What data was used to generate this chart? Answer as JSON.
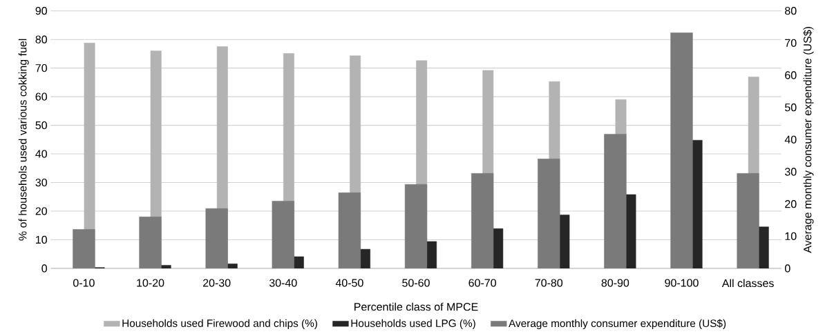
{
  "chart_data": {
    "type": "bar",
    "xlabel": "Percentile class of MPCE",
    "ylabel": "% of househols used various cokking fuel",
    "y2label": "Average monthly consumer expenditure (US$)",
    "categories": [
      "0-10",
      "10-20",
      "20-30",
      "30-40",
      "40-50",
      "50-60",
      "60-70",
      "70-80",
      "80-90",
      "90-100",
      "All classes"
    ],
    "series": [
      {
        "name": "Households used Firewood and chips (%)",
        "color": "#b3b3b3",
        "values": [
          78.8,
          76.0,
          77.5,
          75.1,
          74.3,
          72.6,
          69.2,
          65.3,
          59.0,
          null,
          66.9
        ]
      },
      {
        "name": "Households used LPG (%)",
        "color": "#262626",
        "values": [
          0.3,
          1.1,
          1.6,
          4.1,
          6.7,
          9.4,
          13.9,
          18.7,
          25.8,
          44.8,
          14.5
        ]
      },
      {
        "name": "Average monthly consumer expenditure (US$)",
        "color": "#7a7a7a",
        "axis": "y2",
        "values": [
          12.1,
          16.0,
          18.6,
          20.9,
          23.5,
          26.1,
          29.5,
          34.0,
          41.7,
          73.2,
          29.5
        ]
      }
    ],
    "ylim": [
      0,
      90
    ],
    "yticks": [
      0,
      10,
      20,
      30,
      40,
      50,
      60,
      70,
      80,
      90
    ],
    "y2lim": [
      0,
      80
    ],
    "y2ticks": [
      0,
      10,
      20,
      30,
      40,
      50,
      60,
      70,
      80
    ],
    "grid": "y",
    "legend": "bottom"
  }
}
